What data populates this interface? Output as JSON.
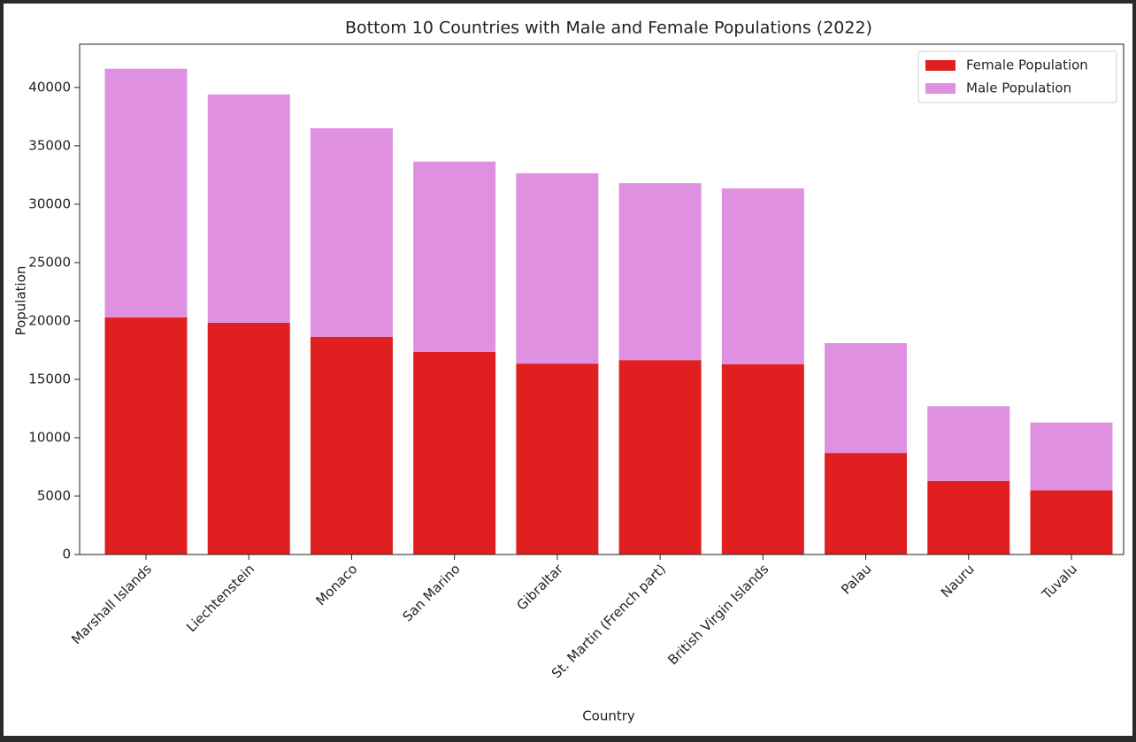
{
  "chart_data": {
    "type": "stacked_bar",
    "title": "Bottom 10 Countries with Male and Female Populations (2022)",
    "x_label": "Country",
    "y_label": "Population",
    "categories": [
      "Marshall Islands",
      "Liechtenstein",
      "Monaco",
      "San Marino",
      "Gibraltar",
      "St. Martin (French part)",
      "British Virgin Islands",
      "Palau",
      "Nauru",
      "Tuvalu"
    ],
    "series": [
      {
        "name": "Female Population",
        "color": "#e02020",
        "values": [
          20300,
          19850,
          18650,
          17350,
          16350,
          16650,
          16300,
          8700,
          6300,
          5500
        ]
      },
      {
        "name": "Male Population",
        "color": "#e090e0",
        "values": [
          21300,
          19550,
          17850,
          16300,
          16300,
          15150,
          15050,
          9400,
          6400,
          5800
        ]
      }
    ],
    "ylim": [
      0,
      43700
    ],
    "yticks": [
      0,
      5000,
      10000,
      15000,
      20000,
      25000,
      30000,
      35000,
      40000
    ],
    "legend": "upper right"
  }
}
